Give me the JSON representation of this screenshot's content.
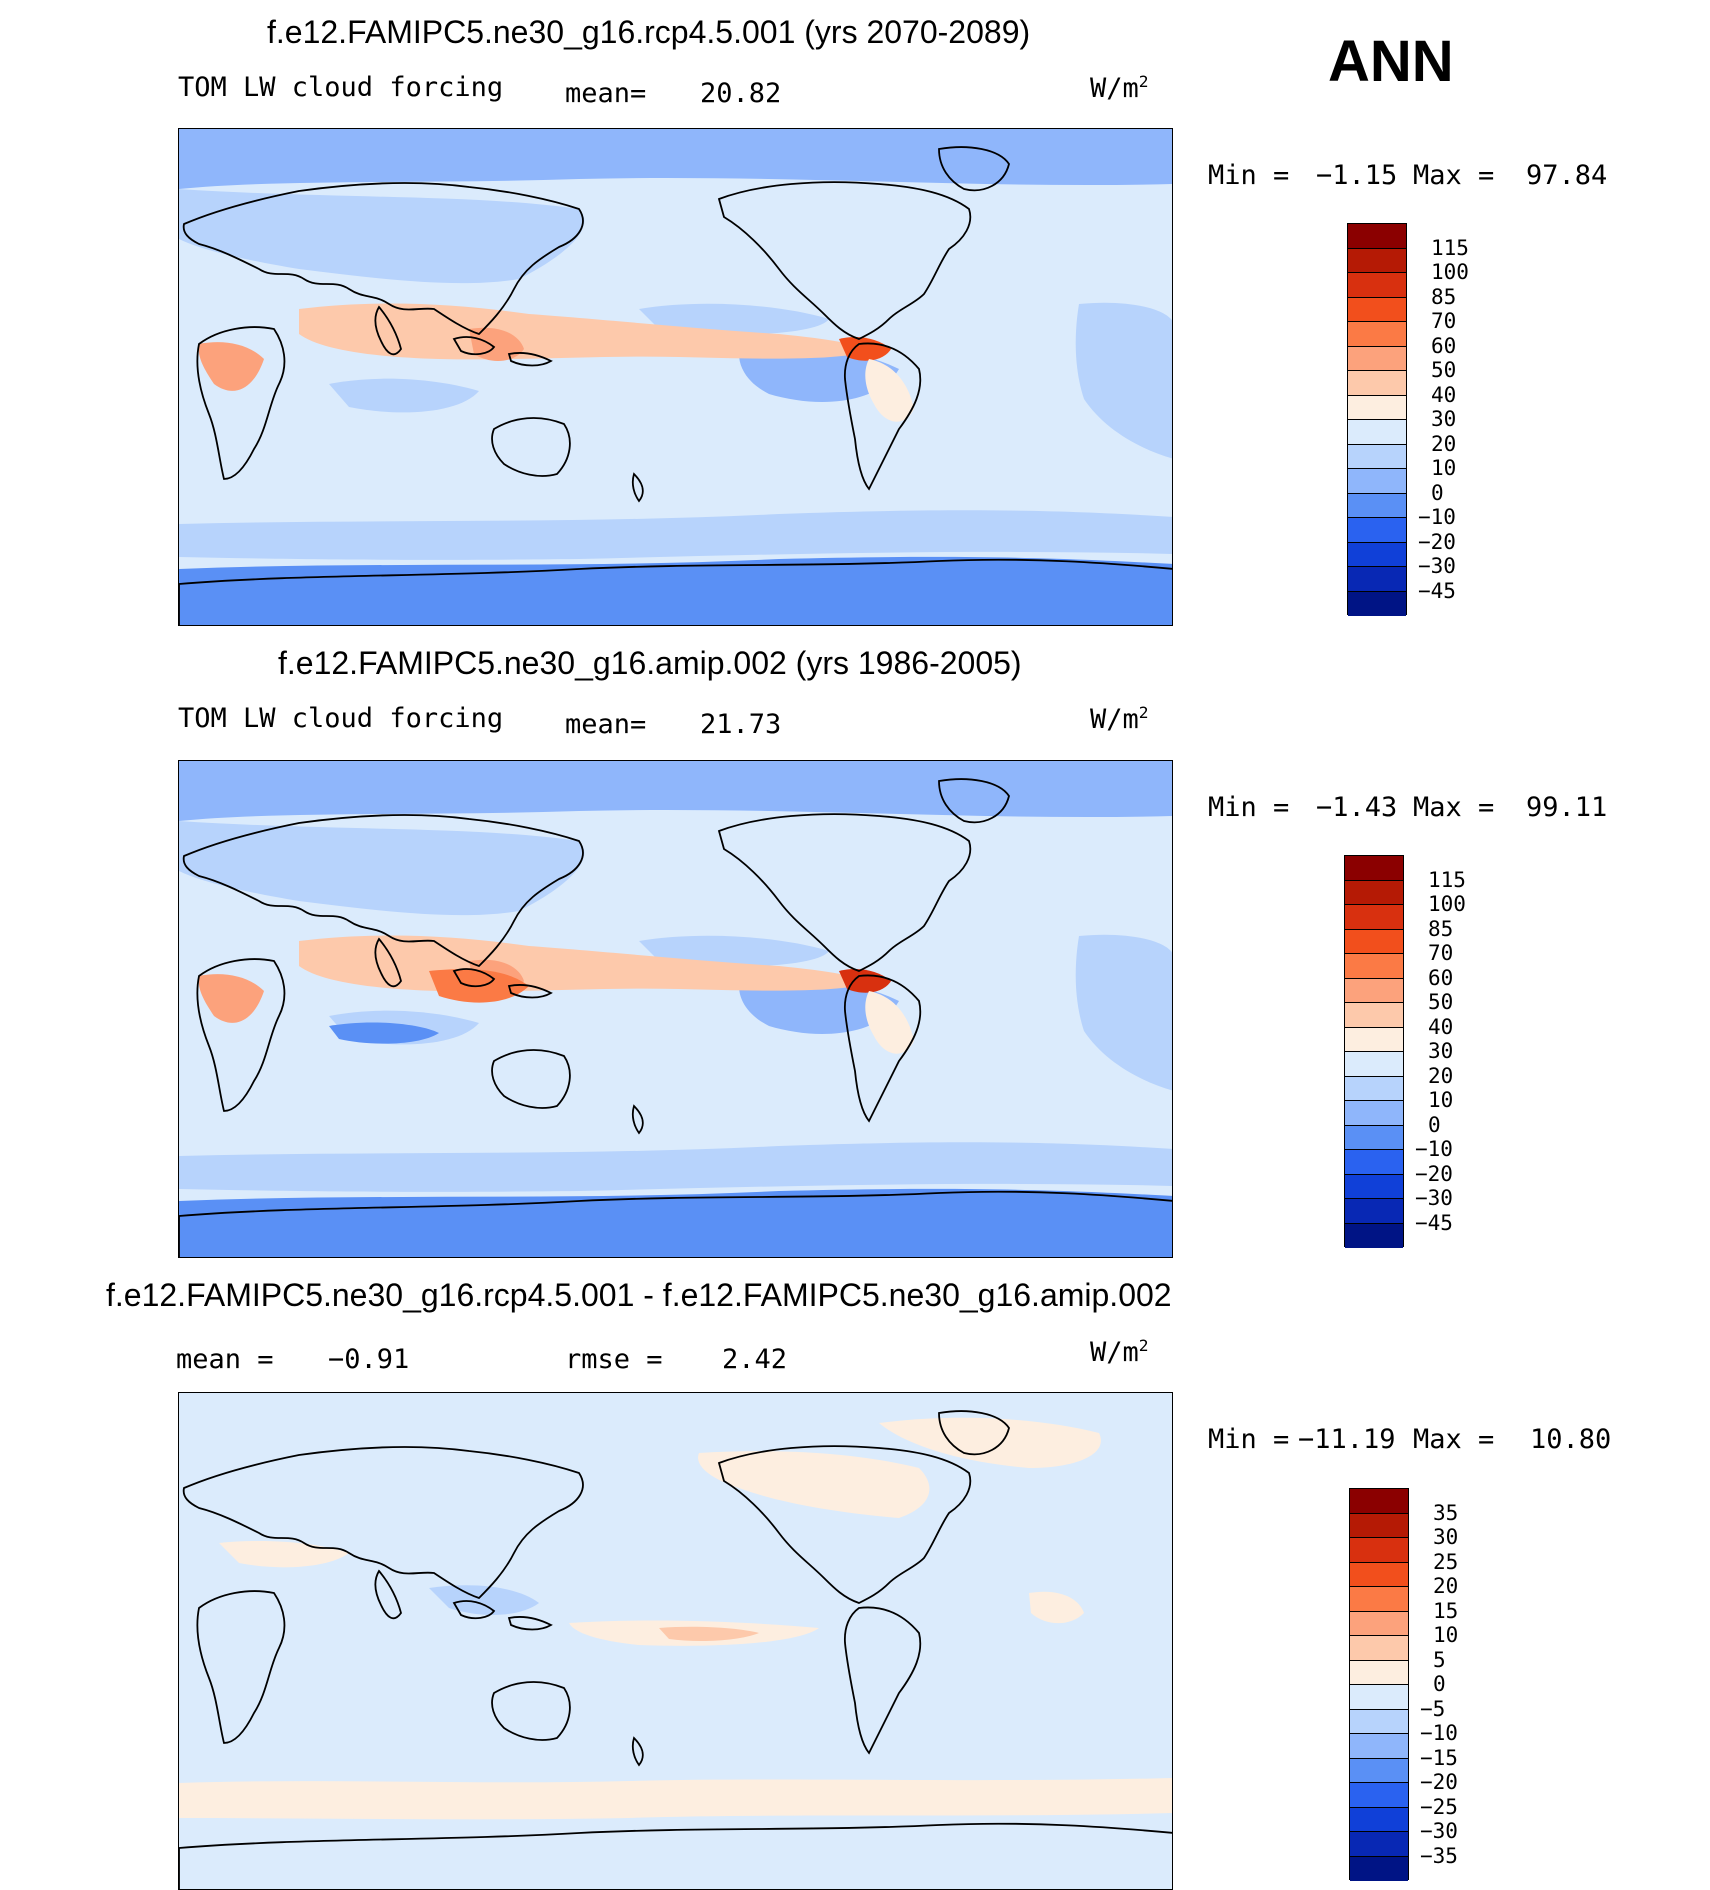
{
  "season": "ANN",
  "chart_data": [
    {
      "type": "heatmap",
      "title": "f.e12.FAMIPC5.ne30_g16.rcp4.5.001 (yrs 2070-2089)",
      "variable": "TOM LW cloud forcing",
      "mean_label": "mean=",
      "mean": "20.82",
      "units": "W/m",
      "units_exp": "2",
      "min_label": "Min =",
      "min": "−1.15",
      "max_label": "Max =",
      "max": "97.84",
      "colorbar_levels": [
        "115",
        "100",
        "85",
        "70",
        "60",
        "50",
        "40",
        "30",
        "20",
        "10",
        "0",
        "−10",
        "−20",
        "−30",
        "−45"
      ],
      "colorbar_colors": [
        "#8b0000",
        "#b51a05",
        "#d8300f",
        "#f24f1c",
        "#fb7a45",
        "#fca27c",
        "#fdc9ab",
        "#fdeee0",
        "#dbebfc",
        "#b7d3fc",
        "#8fb6fb",
        "#5a90f5",
        "#2a62f0",
        "#1040d8",
        "#0828b4",
        "#001485"
      ]
    },
    {
      "type": "heatmap",
      "title": "f.e12.FAMIPC5.ne30_g16.amip.002 (yrs 1986-2005)",
      "variable": "TOM LW cloud forcing",
      "mean_label": "mean=",
      "mean": "21.73",
      "units": "W/m",
      "units_exp": "2",
      "min_label": "Min =",
      "min": "−1.43",
      "max_label": "Max =",
      "max": "99.11",
      "colorbar_levels": [
        "115",
        "100",
        "85",
        "70",
        "60",
        "50",
        "40",
        "30",
        "20",
        "10",
        "0",
        "−10",
        "−20",
        "−30",
        "−45"
      ],
      "colorbar_colors": [
        "#8b0000",
        "#b51a05",
        "#d8300f",
        "#f24f1c",
        "#fb7a45",
        "#fca27c",
        "#fdc9ab",
        "#fdeee0",
        "#dbebfc",
        "#b7d3fc",
        "#8fb6fb",
        "#5a90f5",
        "#2a62f0",
        "#1040d8",
        "#0828b4",
        "#001485"
      ]
    },
    {
      "type": "heatmap",
      "title": "f.e12.FAMIPC5.ne30_g16.rcp4.5.001 - f.e12.FAMIPC5.ne30_g16.amip.002",
      "mean_label": "mean =",
      "mean": "−0.91",
      "rmse_label": "rmse =",
      "rmse": "2.42",
      "units": "W/m",
      "units_exp": "2",
      "min_label": "Min =",
      "min": "−11.19",
      "max_label": "Max =",
      "max": "10.80",
      "colorbar_levels": [
        "35",
        "30",
        "25",
        "20",
        "15",
        "10",
        "5",
        "0",
        "−5",
        "−10",
        "−15",
        "−20",
        "−25",
        "−30",
        "−35"
      ],
      "colorbar_colors": [
        "#8b0000",
        "#b51a05",
        "#d8300f",
        "#f24f1c",
        "#fb7a45",
        "#fca27c",
        "#fdc9ab",
        "#fdeee0",
        "#dbebfc",
        "#b7d3fc",
        "#8fb6fb",
        "#5a90f5",
        "#2a62f0",
        "#1040d8",
        "#0828b4",
        "#001485"
      ]
    }
  ]
}
